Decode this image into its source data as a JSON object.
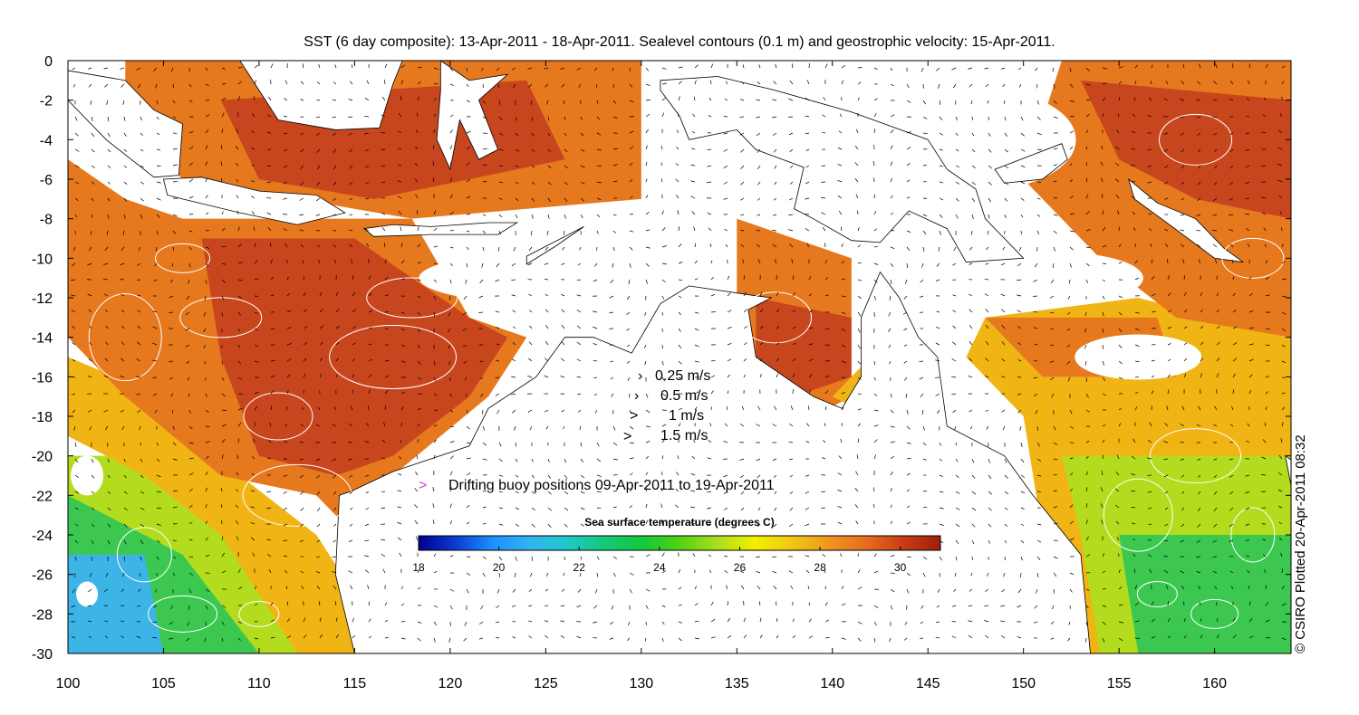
{
  "title": "SST (6 day composite): 13-Apr-2011 - 18-Apr-2011. Sealevel contours (0.1 m) and geostrophic velocity: 15-Apr-2011.",
  "credit": "© CSIRO Plotted 20-Apr-2011 08:32",
  "map": {
    "lon_range": [
      100,
      164
    ],
    "lat_range": [
      -30,
      0
    ],
    "x_ticks": [
      "100",
      "105",
      "110",
      "115",
      "120",
      "125",
      "130",
      "135",
      "140",
      "145",
      "150",
      "155",
      "160"
    ],
    "y_ticks": [
      "0",
      "-2",
      "-4",
      "-6",
      "-8",
      "-10",
      "-12",
      "-14",
      "-16",
      "-18",
      "-20",
      "-22",
      "-24",
      "-26",
      "-28",
      "-30"
    ]
  },
  "velocity_legend": [
    {
      "label": "0.25 m/s",
      "arrow": "›"
    },
    {
      "label": "0.5 m/s",
      "arrow": "›"
    },
    {
      "label": "1 m/s",
      "arrow": ">"
    },
    {
      "label": "1.5 m/s",
      "arrow": ">"
    }
  ],
  "buoy_legend": {
    "marker": ">",
    "label": "Drifting buoy positions 09-Apr-2011 to 19-Apr-2011",
    "color": "#cc44cc"
  },
  "colorbar": {
    "title": "Sea surface temperature (degrees C)",
    "min": 18,
    "max": 31,
    "ticks": [
      "18",
      "20",
      "22",
      "24",
      "26",
      "28",
      "30"
    ],
    "colors": [
      "#00008b",
      "#0a3cd2",
      "#1e90ff",
      "#32b4f0",
      "#1ec8c8",
      "#14c878",
      "#14c83c",
      "#50d214",
      "#aade1e",
      "#f0f000",
      "#f0c814",
      "#f0961e",
      "#e66e1e",
      "#c83c14",
      "#a01e0a"
    ]
  },
  "sst_palette": {
    "hot": "#c8461e",
    "warm": "#e6781e",
    "mid": "#f0b414",
    "cool": "#b4dc1e",
    "cold": "#3cc850",
    "coldest": "#3cb4e6",
    "land": "#ffffff",
    "cloud": "#ffffff"
  }
}
